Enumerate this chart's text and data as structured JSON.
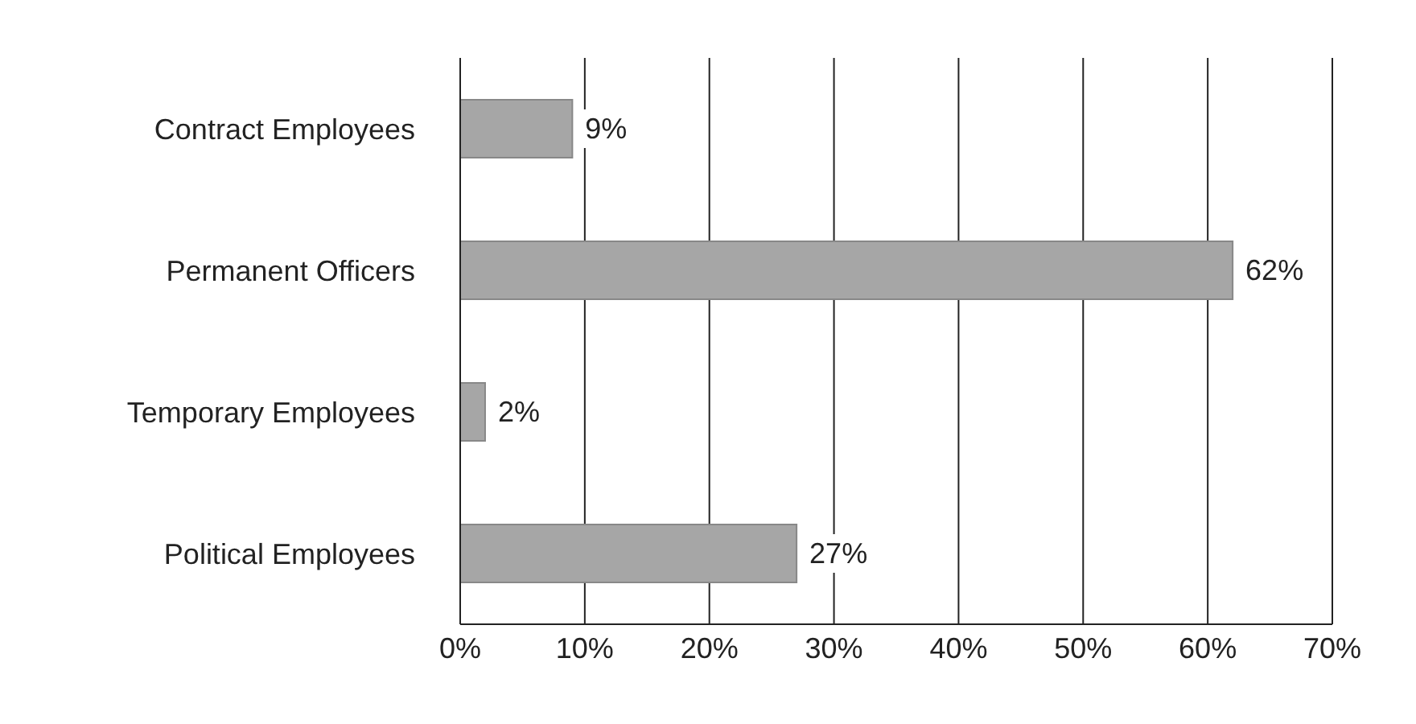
{
  "chart_data": {
    "type": "bar",
    "orientation": "horizontal",
    "categories": [
      "Contract Employees",
      "Permanent Officers",
      "Temporary Employees",
      "Political Employees"
    ],
    "values": [
      9,
      62,
      2,
      27
    ],
    "color": "#a6a6a6",
    "value_labels": [
      "9%",
      "62%",
      "2%",
      "27%"
    ],
    "xlim": [
      0,
      70
    ],
    "xticks": [
      {
        "value": 0,
        "label": "0%"
      },
      {
        "value": 10,
        "label": "10%"
      },
      {
        "value": 20,
        "label": "20%"
      },
      {
        "value": 30,
        "label": "30%"
      },
      {
        "value": 40,
        "label": "40%"
      },
      {
        "value": 50,
        "label": "50%"
      },
      {
        "value": 60,
        "label": "60%"
      },
      {
        "value": 70,
        "label": "70%"
      }
    ],
    "grid": "x"
  }
}
